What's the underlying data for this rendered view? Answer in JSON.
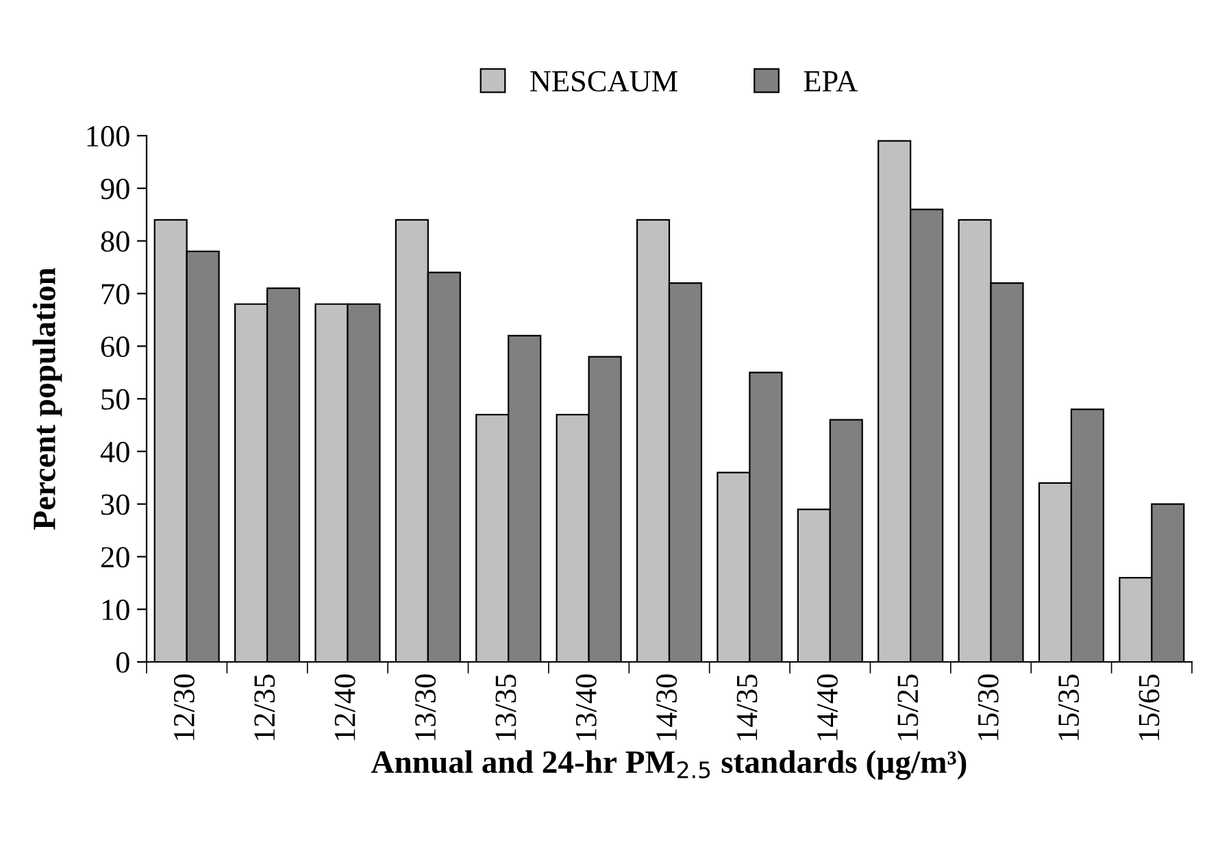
{
  "chart_data": {
    "type": "bar",
    "xlabel": "Annual and 24-hr PM$_{2.5}$ standards (µg/m³)",
    "ylabel": "Percent population",
    "categories": [
      "12/30",
      "12/35",
      "12/40",
      "13/30",
      "13/35",
      "13/40",
      "14/30",
      "14/35",
      "14/40",
      "15/25",
      "15/30",
      "15/35",
      "15/65"
    ],
    "series": [
      {
        "name": "NESCAUM",
        "color": "#c0c0c0",
        "values": [
          84,
          68,
          68,
          84,
          47,
          47,
          84,
          36,
          29,
          99,
          84,
          34,
          16
        ]
      },
      {
        "name": "EPA",
        "color": "#808080",
        "values": [
          78,
          71,
          68,
          74,
          62,
          58,
          72,
          55,
          46,
          86,
          72,
          48,
          30
        ]
      }
    ],
    "ylim": [
      0,
      100
    ],
    "yticks": [
      0,
      10,
      20,
      30,
      40,
      50,
      60,
      70,
      80,
      90,
      100
    ],
    "grid": false,
    "legend": "top"
  }
}
